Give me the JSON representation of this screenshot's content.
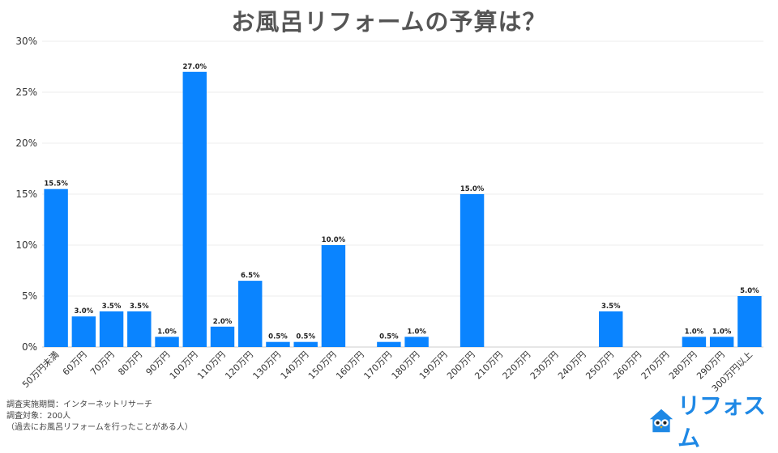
{
  "title": "お風呂リフォームの予算は？",
  "notes": [
    "調査実施期間：インターネットリサーチ",
    "調査対象：200人",
    "（過去にお風呂リフォームを行ったことがある人）"
  ],
  "brand": {
    "logo_text": "リフォスム",
    "color": "#1e88e5",
    "mascot_icon": "owl-house-icon"
  },
  "colors": {
    "bar": "#0a84ff",
    "grid": "#eeeeee",
    "title": "#555555"
  },
  "chart_data": {
    "type": "bar",
    "title": "お風呂リフォームの予算は？",
    "categories": [
      "50万円未満",
      "60万円",
      "70万円",
      "80万円",
      "90万円",
      "100万円",
      "110万円",
      "120万円",
      "130万円",
      "140万円",
      "150万円",
      "160万円",
      "170万円",
      "180万円",
      "190万円",
      "200万円",
      "210万円",
      "220万円",
      "230万円",
      "240万円",
      "250万円",
      "260万円",
      "270万円",
      "280万円",
      "290万円",
      "300万円以上"
    ],
    "values": [
      15.5,
      3.0,
      3.5,
      3.5,
      1.0,
      27.0,
      2.0,
      6.5,
      0.5,
      0.5,
      10.0,
      0,
      0.5,
      1.0,
      0,
      15.0,
      0,
      0,
      0,
      0,
      3.5,
      0,
      0,
      1.0,
      1.0,
      5.0
    ],
    "data_labels": [
      "15.5%",
      "3.0%",
      "3.5%",
      "3.5%",
      "1.0%",
      "27.0%",
      "2.0%",
      "6.5%",
      "0.5%",
      "0.5%",
      "10.0%",
      "",
      "0.5%",
      "1.0%",
      "",
      "15.0%",
      "",
      "",
      "",
      "",
      "3.5%",
      "",
      "",
      "1.0%",
      "1.0%",
      "5.0%"
    ],
    "ylim": [
      0,
      30
    ],
    "yticks": [
      0,
      5,
      10,
      15,
      20,
      25,
      30
    ],
    "ytick_labels": [
      "0%",
      "5%",
      "10%",
      "15%",
      "20%",
      "25%",
      "30%"
    ],
    "xlabel": "",
    "ylabel": "",
    "grid": true
  }
}
